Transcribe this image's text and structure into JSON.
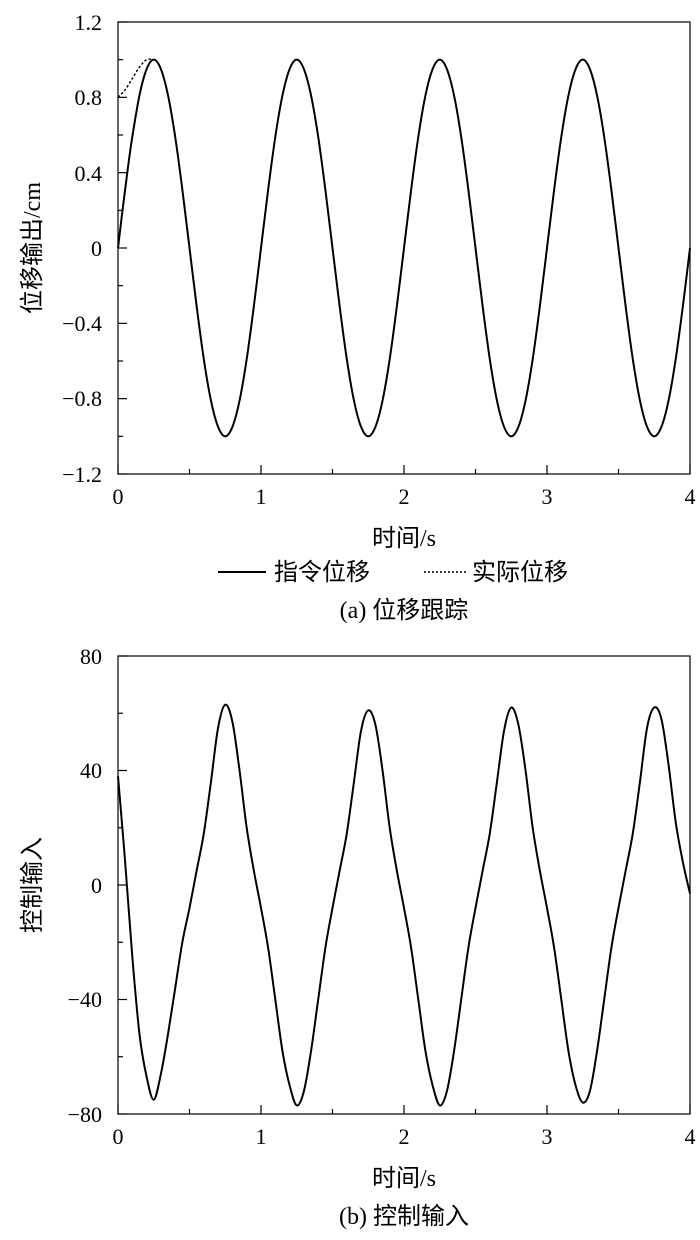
{
  "chart_data": [
    {
      "type": "line",
      "caption": "(a) 位移跟踪",
      "xlabel": "时间/s",
      "ylabel": "位移输出/cm",
      "xlim": [
        0,
        4
      ],
      "ylim": [
        -1.2,
        1.2
      ],
      "xticks": [
        "0",
        "1",
        "2",
        "3",
        "4"
      ],
      "yticks": [
        "1.2",
        "0.8",
        "0.4",
        "0",
        "−0.4",
        "−0.8",
        "−1.2"
      ],
      "legend": [
        "指令位移",
        "实际位移"
      ],
      "legend_position": "below-plot",
      "grid": false,
      "series": [
        {
          "name": "指令位移",
          "style": "solid",
          "x": [
            0,
            0.03,
            0.07,
            0.1,
            0.15,
            0.2,
            0.25,
            0.3,
            0.35,
            0.4,
            0.45,
            0.5,
            0.55,
            0.6,
            0.65,
            0.7,
            0.75,
            0.8,
            0.85,
            0.9,
            0.95,
            1.0,
            1.05,
            1.1,
            1.15,
            1.2,
            1.25,
            1.3,
            1.35,
            1.4,
            1.45,
            1.5,
            1.55,
            1.6,
            1.65,
            1.7,
            1.75,
            1.8,
            1.85,
            1.9,
            1.95,
            2.0,
            2.05,
            2.1,
            2.15,
            2.2,
            2.25,
            2.3,
            2.35,
            2.4,
            2.45,
            2.5,
            2.55,
            2.6,
            2.65,
            2.7,
            2.75,
            2.8,
            2.85,
            2.9,
            2.95,
            3.0,
            3.05,
            3.1,
            3.15,
            3.2,
            3.25,
            3.3,
            3.35,
            3.4,
            3.45,
            3.5,
            3.55,
            3.6,
            3.65,
            3.7,
            3.75,
            3.8,
            3.85,
            3.9,
            3.95,
            4.0
          ],
          "y": [
            0,
            0.19,
            0.43,
            0.59,
            0.81,
            0.95,
            1.0,
            0.95,
            0.81,
            0.59,
            0.31,
            0,
            -0.31,
            -0.59,
            -0.81,
            -0.95,
            -1.0,
            -0.95,
            -0.81,
            -0.59,
            -0.31,
            0,
            0.31,
            0.59,
            0.81,
            0.95,
            1.0,
            0.95,
            0.81,
            0.59,
            0.31,
            0,
            -0.31,
            -0.59,
            -0.81,
            -0.95,
            -1.0,
            -0.95,
            -0.81,
            -0.59,
            -0.31,
            0,
            0.31,
            0.59,
            0.81,
            0.95,
            1.0,
            0.95,
            0.81,
            0.59,
            0.31,
            0,
            -0.31,
            -0.59,
            -0.81,
            -0.95,
            -1.0,
            -0.95,
            -0.81,
            -0.59,
            -0.31,
            0,
            0.31,
            0.59,
            0.81,
            0.95,
            1.0,
            0.95,
            0.81,
            0.59,
            0.31,
            0,
            -0.31,
            -0.59,
            -0.81,
            -0.95,
            -1.0,
            -0.95,
            -0.81,
            -0.59,
            -0.31,
            0
          ]
        },
        {
          "name": "实际位移",
          "style": "dashed",
          "x": [
            0,
            0.05,
            0.1,
            0.15,
            0.2,
            0.25
          ],
          "y": [
            0.8,
            0.84,
            0.9,
            0.96,
            1.0,
            1.0
          ]
        }
      ]
    },
    {
      "type": "line",
      "caption": "(b) 控制输入",
      "xlabel": "时间/s",
      "ylabel": "控制输入",
      "xlim": [
        0,
        4
      ],
      "ylim": [
        -80,
        80
      ],
      "xticks": [
        "0",
        "1",
        "2",
        "3",
        "4"
      ],
      "yticks": [
        "80",
        "40",
        "0",
        "−40",
        "−80"
      ],
      "grid": false,
      "series": [
        {
          "style": "solid",
          "x": [
            0,
            0.05,
            0.1,
            0.15,
            0.2,
            0.25,
            0.3,
            0.35,
            0.4,
            0.45,
            0.5,
            0.55,
            0.6,
            0.65,
            0.7,
            0.75,
            0.8,
            0.85,
            0.9,
            0.95,
            1.0,
            1.05,
            1.1,
            1.15,
            1.2,
            1.25,
            1.3,
            1.35,
            1.4,
            1.45,
            1.5,
            1.55,
            1.6,
            1.65,
            1.7,
            1.75,
            1.8,
            1.85,
            1.9,
            1.95,
            2.0,
            2.05,
            2.1,
            2.15,
            2.2,
            2.25,
            2.3,
            2.35,
            2.4,
            2.45,
            2.5,
            2.55,
            2.6,
            2.65,
            2.7,
            2.75,
            2.8,
            2.85,
            2.9,
            2.95,
            3.0,
            3.05,
            3.1,
            3.15,
            3.2,
            3.25,
            3.3,
            3.35,
            3.4,
            3.45,
            3.5,
            3.55,
            3.6,
            3.65,
            3.7,
            3.75,
            3.8,
            3.85,
            3.9,
            3.95,
            4.0
          ],
          "y": [
            38,
            8,
            -25,
            -52,
            -67,
            -75,
            -66,
            -52,
            -36,
            -20,
            -8,
            5,
            18,
            36,
            55,
            63,
            57,
            40,
            20,
            5,
            -8,
            -22,
            -40,
            -58,
            -70,
            -77,
            -72,
            -58,
            -40,
            -22,
            -8,
            5,
            18,
            36,
            54,
            61,
            56,
            40,
            20,
            5,
            -8,
            -22,
            -40,
            -58,
            -70,
            -77,
            -72,
            -58,
            -40,
            -22,
            -8,
            5,
            18,
            36,
            54,
            62,
            56,
            40,
            20,
            5,
            -8,
            -22,
            -40,
            -58,
            -70,
            -76,
            -72,
            -58,
            -40,
            -22,
            -8,
            5,
            18,
            36,
            55,
            62,
            58,
            42,
            22,
            8,
            -3
          ]
        }
      ]
    }
  ]
}
